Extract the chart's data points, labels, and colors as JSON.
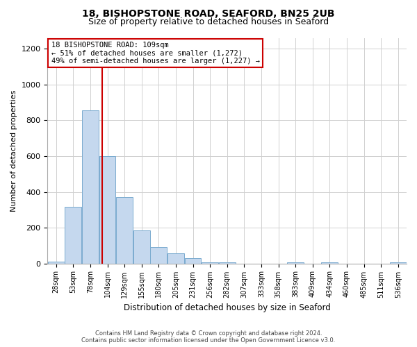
{
  "title_line1": "18, BISHOPSTONE ROAD, SEAFORD, BN25 2UB",
  "title_line2": "Size of property relative to detached houses in Seaford",
  "xlabel": "Distribution of detached houses by size in Seaford",
  "ylabel": "Number of detached properties",
  "categories": [
    "28sqm",
    "53sqm",
    "78sqm",
    "104sqm",
    "129sqm",
    "155sqm",
    "180sqm",
    "205sqm",
    "231sqm",
    "256sqm",
    "282sqm",
    "307sqm",
    "333sqm",
    "358sqm",
    "383sqm",
    "409sqm",
    "434sqm",
    "460sqm",
    "485sqm",
    "511sqm",
    "536sqm"
  ],
  "values": [
    10,
    315,
    855,
    600,
    370,
    185,
    90,
    55,
    30,
    5,
    5,
    0,
    0,
    0,
    5,
    0,
    5,
    0,
    0,
    0,
    5
  ],
  "bar_color": "#c5d8ee",
  "bar_edge_color": "#7aabcf",
  "property_line_label": "18 BISHOPSTONE ROAD: 109sqm",
  "annotation_line1": "← 51% of detached houses are smaller (1,272)",
  "annotation_line2": "49% of semi-detached houses are larger (1,227) →",
  "ylim": [
    0,
    1260
  ],
  "yticks": [
    0,
    200,
    400,
    600,
    800,
    1000,
    1200
  ],
  "annotation_box_color": "#ffffff",
  "annotation_box_edge_color": "#cc0000",
  "red_line_color": "#cc0000",
  "grid_color": "#d0d0d0",
  "footer_line1": "Contains HM Land Registry data © Crown copyright and database right 2024.",
  "footer_line2": "Contains public sector information licensed under the Open Government Licence v3.0.",
  "bg_color": "#ffffff",
  "title_fontsize": 10,
  "subtitle_fontsize": 9,
  "annotation_fontsize": 7.5
}
